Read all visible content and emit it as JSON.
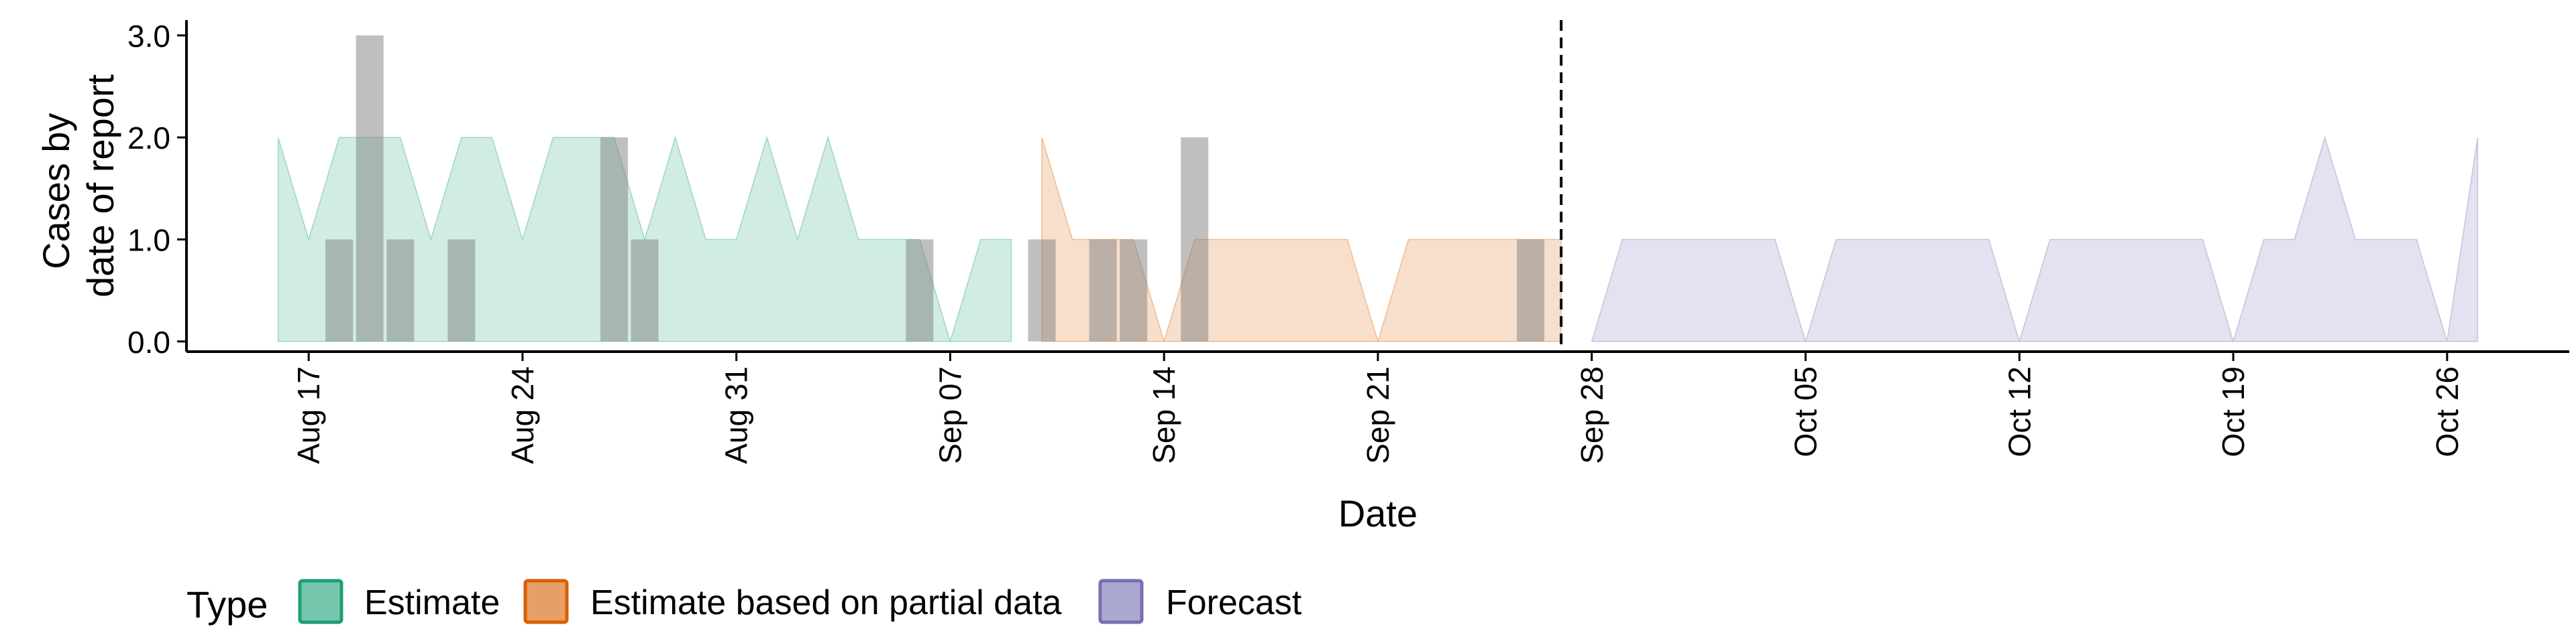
{
  "chart_data": {
    "type": "area",
    "title": "",
    "xlabel": "Date",
    "ylabel_lines": [
      "Cases by",
      "date of report"
    ],
    "ylim": [
      -0.1,
      3.15
    ],
    "yticks": [
      0,
      1,
      2,
      3
    ],
    "ytick_labels": [
      "0.0",
      "1.0",
      "2.0",
      "3.0"
    ],
    "xlim": [
      "2020-08-13",
      "2020-10-30"
    ],
    "xticks": [
      "2020-08-17",
      "2020-08-24",
      "2020-08-31",
      "2020-09-07",
      "2020-09-14",
      "2020-09-21",
      "2020-09-28",
      "2020-10-05",
      "2020-10-12",
      "2020-10-19",
      "2020-10-26"
    ],
    "xtick_labels": [
      "Aug 17",
      "Aug 24",
      "Aug 31",
      "Sep 07",
      "Sep 14",
      "Sep 21",
      "Sep 28",
      "Oct 05",
      "Oct 12",
      "Oct 19",
      "Oct 26"
    ],
    "forecast_start_line": "2020-09-27",
    "legend": {
      "title": "Type",
      "position": "bottom",
      "items": [
        {
          "label": "Estimate",
          "fill": "#1b9e77",
          "border": "#1b9e77"
        },
        {
          "label": "Estimate based on partial data",
          "fill": "#d95f02",
          "border": "#d95f02"
        },
        {
          "label": "Forecast",
          "fill": "#7570b3",
          "border": "#7570b3"
        }
      ]
    },
    "series": [
      {
        "name": "Estimate",
        "color": "#1b9e77",
        "opacity": 0.2,
        "points": [
          [
            "2020-08-16",
            2
          ],
          [
            "2020-08-17",
            1
          ],
          [
            "2020-08-18",
            2
          ],
          [
            "2020-08-19",
            2
          ],
          [
            "2020-08-20",
            2
          ],
          [
            "2020-08-21",
            1
          ],
          [
            "2020-08-22",
            2
          ],
          [
            "2020-08-23",
            2
          ],
          [
            "2020-08-24",
            1
          ],
          [
            "2020-08-25",
            2
          ],
          [
            "2020-08-26",
            2
          ],
          [
            "2020-08-27",
            2
          ],
          [
            "2020-08-28",
            1
          ],
          [
            "2020-08-29",
            2
          ],
          [
            "2020-08-30",
            1
          ],
          [
            "2020-08-31",
            1
          ],
          [
            "2020-09-01",
            2
          ],
          [
            "2020-09-02",
            1
          ],
          [
            "2020-09-03",
            2
          ],
          [
            "2020-09-04",
            1
          ],
          [
            "2020-09-05",
            1
          ],
          [
            "2020-09-06",
            1
          ],
          [
            "2020-09-07",
            0
          ],
          [
            "2020-09-08",
            1
          ],
          [
            "2020-09-09",
            1
          ]
        ]
      },
      {
        "name": "Estimate based on partial data",
        "color": "#d95f02",
        "opacity": 0.2,
        "points": [
          [
            "2020-09-10",
            2
          ],
          [
            "2020-09-11",
            1
          ],
          [
            "2020-09-12",
            1
          ],
          [
            "2020-09-13",
            1
          ],
          [
            "2020-09-14",
            0
          ],
          [
            "2020-09-15",
            1
          ],
          [
            "2020-09-16",
            1
          ],
          [
            "2020-09-17",
            1
          ],
          [
            "2020-09-18",
            1
          ],
          [
            "2020-09-19",
            1
          ],
          [
            "2020-09-20",
            1
          ],
          [
            "2020-09-21",
            0
          ],
          [
            "2020-09-22",
            1
          ],
          [
            "2020-09-23",
            1
          ],
          [
            "2020-09-24",
            1
          ],
          [
            "2020-09-25",
            1
          ],
          [
            "2020-09-26",
            1
          ],
          [
            "2020-09-27",
            1
          ]
        ]
      },
      {
        "name": "Forecast",
        "color": "#7570b3",
        "opacity": 0.2,
        "points": [
          [
            "2020-09-28",
            0
          ],
          [
            "2020-09-29",
            1
          ],
          [
            "2020-09-30",
            1
          ],
          [
            "2020-10-01",
            1
          ],
          [
            "2020-10-02",
            1
          ],
          [
            "2020-10-03",
            1
          ],
          [
            "2020-10-04",
            1
          ],
          [
            "2020-10-05",
            0
          ],
          [
            "2020-10-06",
            1
          ],
          [
            "2020-10-07",
            1
          ],
          [
            "2020-10-08",
            1
          ],
          [
            "2020-10-09",
            1
          ],
          [
            "2020-10-10",
            1
          ],
          [
            "2020-10-11",
            1
          ],
          [
            "2020-10-12",
            0
          ],
          [
            "2020-10-13",
            1
          ],
          [
            "2020-10-14",
            1
          ],
          [
            "2020-10-15",
            1
          ],
          [
            "2020-10-16",
            1
          ],
          [
            "2020-10-17",
            1
          ],
          [
            "2020-10-18",
            1
          ],
          [
            "2020-10-19",
            0
          ],
          [
            "2020-10-20",
            1
          ],
          [
            "2020-10-21",
            1
          ],
          [
            "2020-10-22",
            2
          ],
          [
            "2020-10-23",
            1
          ],
          [
            "2020-10-24",
            1
          ],
          [
            "2020-10-25",
            1
          ],
          [
            "2020-10-26",
            0
          ],
          [
            "2020-10-27",
            2
          ]
        ]
      }
    ],
    "reported_cases": {
      "color": "#7f7f7f",
      "opacity": 0.5,
      "values": [
        [
          "2020-08-18",
          1
        ],
        [
          "2020-08-19",
          3
        ],
        [
          "2020-08-20",
          1
        ],
        [
          "2020-08-22",
          1
        ],
        [
          "2020-08-27",
          2
        ],
        [
          "2020-08-28",
          1
        ],
        [
          "2020-09-06",
          1
        ],
        [
          "2020-09-10",
          1
        ],
        [
          "2020-09-12",
          1
        ],
        [
          "2020-09-13",
          1
        ],
        [
          "2020-09-15",
          2
        ],
        [
          "2020-09-26",
          1
        ]
      ]
    }
  }
}
